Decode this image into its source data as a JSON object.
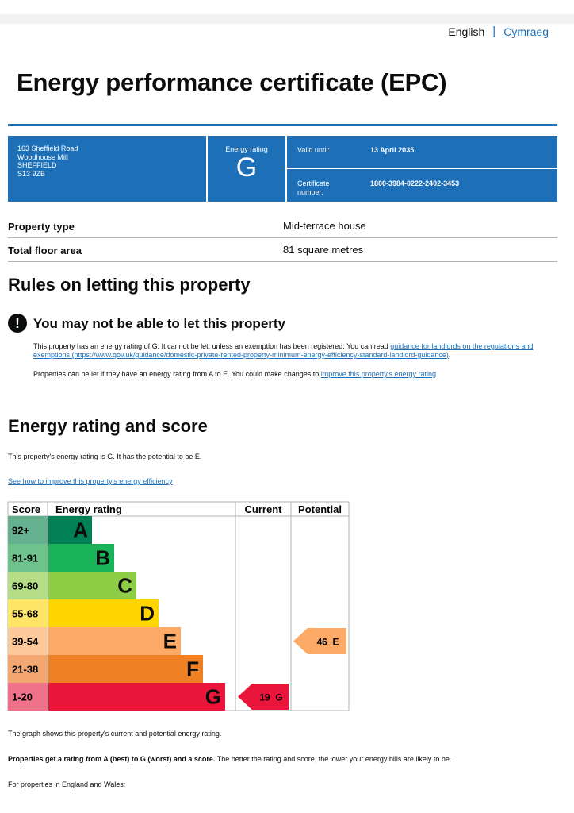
{
  "language": {
    "english": "English",
    "separator": "|",
    "welsh": "Cymraeg"
  },
  "title": "Energy performance certificate (EPC)",
  "certificate": {
    "address": [
      "163 Sheffield Road",
      "Woodhouse Mill",
      "SHEFFIELD",
      "S13 9ZB"
    ],
    "rating_label": "Energy rating",
    "rating": "G",
    "valid_until_label": "Valid until:",
    "valid_until": "13 April 2035",
    "cert_number_label_1": "Certificate",
    "cert_number_label_2": "number:",
    "cert_number": "1800-3984-0222-2402-3453"
  },
  "summary": [
    {
      "label": "Property type",
      "value": "Mid-terrace house"
    },
    {
      "label": "Total floor area",
      "value": "81 square metres"
    }
  ],
  "letting": {
    "heading": "Rules on letting this property",
    "warning_icon_glyph": "!",
    "warning_title": "You may not be able to let this property",
    "para1_text": "This property has an energy rating of G. It cannot be let, unless an exemption has been registered. You can read ",
    "para1_link": "guidance for landlords on the regulations and exemptions (https://www.gov.uk/guidance/domestic-private-rented-property-minimum-energy-efficiency-standard-landlord-guidance)",
    "para1_end": ".",
    "para2_text": "Properties can be let if they have an energy rating from A to E. You could make changes to ",
    "para2_link": "improve this property's energy rating",
    "para2_end": "."
  },
  "energy": {
    "heading": "Energy rating and score",
    "intro": "This property's energy rating is G. It has the potential to be E.",
    "improve_link": "See how to improve this property's energy efficiency",
    "caption": "The graph shows this property's current and potential energy rating.",
    "bold_sentence": "Properties get a rating from A (best) to G (worst) and a score.",
    "rest_sentence": " The better the rating and score, the lower your energy bills are likely to be.",
    "footer": "For properties in England and Wales:"
  },
  "chart_data": {
    "type": "table",
    "headers": {
      "score": "Score",
      "rating": "Energy rating",
      "current": "Current",
      "potential": "Potential"
    },
    "bands": [
      {
        "score": "92+",
        "letter": "A",
        "color": "#008054",
        "score_bg": "#65b08e"
      },
      {
        "score": "81-91",
        "letter": "B",
        "color": "#19b459",
        "score_bg": "#6ec28c"
      },
      {
        "score": "69-80",
        "letter": "C",
        "color": "#8dce46",
        "score_bg": "#b5dd88"
      },
      {
        "score": "55-68",
        "letter": "D",
        "color": "#ffd500",
        "score_bg": "#ffe566"
      },
      {
        "score": "39-54",
        "letter": "E",
        "color": "#fcaa65",
        "score_bg": "#fdc99b"
      },
      {
        "score": "21-38",
        "letter": "F",
        "color": "#ef8023",
        "score_bg": "#f4a770"
      },
      {
        "score": "1-20",
        "letter": "G",
        "color": "#e9153b",
        "score_bg": "#f0728a"
      }
    ],
    "current": {
      "score": 19,
      "letter": "G",
      "label": "19  G",
      "color": "#e9153b"
    },
    "potential": {
      "score": 46,
      "letter": "E",
      "label": "46  E",
      "color": "#fcaa65"
    }
  }
}
